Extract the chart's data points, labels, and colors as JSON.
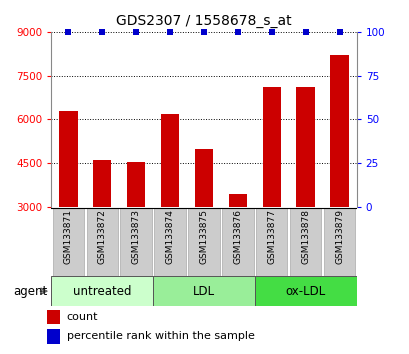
{
  "title": "GDS2307 / 1558678_s_at",
  "categories": [
    "GSM133871",
    "GSM133872",
    "GSM133873",
    "GSM133874",
    "GSM133875",
    "GSM133876",
    "GSM133877",
    "GSM133878",
    "GSM133879"
  ],
  "counts": [
    6300,
    4600,
    4550,
    6200,
    5000,
    3450,
    7100,
    7100,
    8200
  ],
  "ylim_left": [
    3000,
    9000
  ],
  "ylim_right": [
    0,
    100
  ],
  "yticks_left": [
    3000,
    4500,
    6000,
    7500,
    9000
  ],
  "yticks_right": [
    0,
    25,
    50,
    75,
    100
  ],
  "bar_color": "#cc0000",
  "dot_color": "#0000cc",
  "groups": [
    {
      "label": "untreated",
      "start": 0,
      "end": 3,
      "color": "#ccffcc"
    },
    {
      "label": "LDL",
      "start": 3,
      "end": 6,
      "color": "#99ee99"
    },
    {
      "label": "ox-LDL",
      "start": 6,
      "end": 9,
      "color": "#44dd44"
    }
  ],
  "agent_label": "agent",
  "legend_count_label": "count",
  "legend_pct_label": "percentile rank within the sample",
  "title_fontsize": 10,
  "tick_fontsize": 7.5,
  "xlabel_fontsize": 6.5,
  "group_fontsize": 8.5,
  "legend_fontsize": 8
}
